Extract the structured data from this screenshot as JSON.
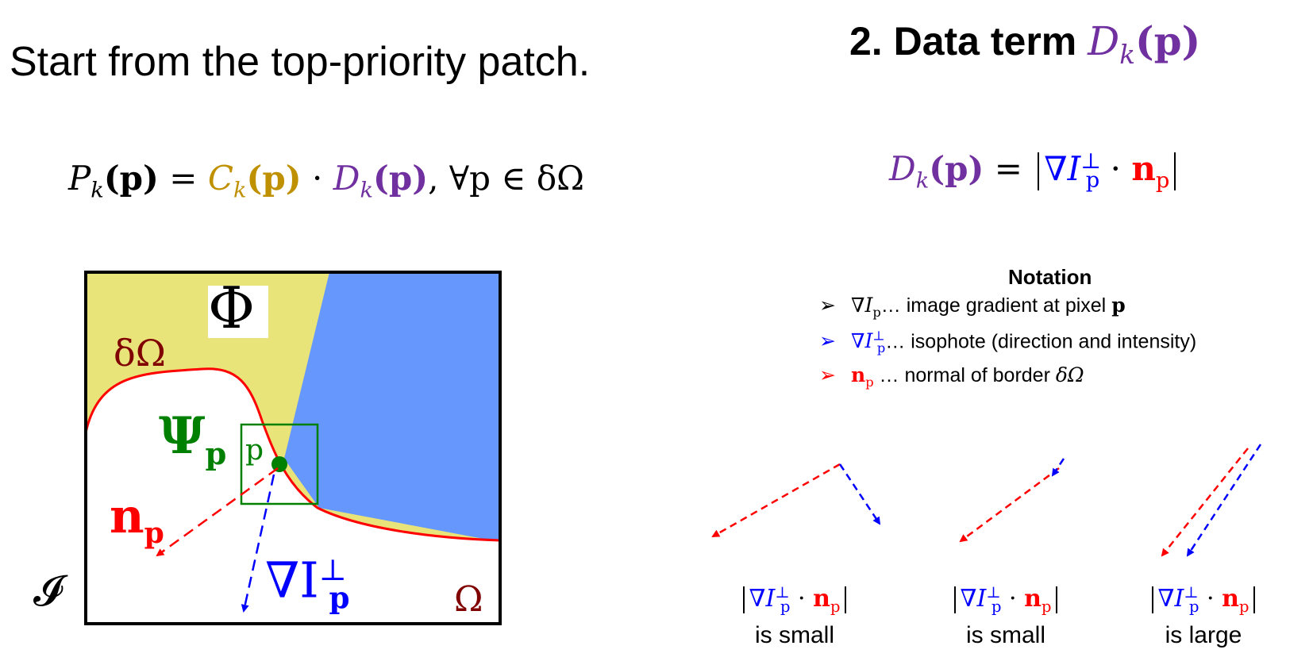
{
  "left_heading": "Start from the top-priority patch.",
  "right_heading": {
    "number": "2.",
    "text": "Data term",
    "symbol": "D",
    "subscript": "k",
    "arg": "(p)"
  },
  "priority_equation": {
    "lhs": "P",
    "lhs_sub": "k",
    "arg": "(p)",
    "equals": "=",
    "c_term": "C",
    "c_sub": "k",
    "dot": "·",
    "d_term": "D",
    "d_sub": "k",
    "tail": ", ∀p ∈ δΩ"
  },
  "data_equation": {
    "lhs": "D",
    "lhs_sub": "k",
    "arg": "(p)",
    "equals": "=",
    "nabla_I": "∇I",
    "I_sub": "p",
    "I_sup": "⊥",
    "dot": "·",
    "n": "n",
    "n_sub": "p"
  },
  "notation": {
    "title": "Notation",
    "items": [
      {
        "arrow": "➢",
        "symbol": "∇I",
        "sub": "p",
        "sup": "",
        "text": "… image gradient at pixel ",
        "tail": "p",
        "color": "#000000"
      },
      {
        "arrow": "➢",
        "symbol": "∇I",
        "sub": "p",
        "sup": "⊥",
        "text": "… isophote (direction and intensity)",
        "tail": "",
        "color": "#0000ff"
      },
      {
        "arrow": "➢",
        "symbol": "n",
        "sub": "p",
        "sup": "",
        "text": " … normal of border ",
        "tail": "δΩ",
        "color": "#ff0000"
      }
    ]
  },
  "figure": {
    "phi": "Φ",
    "delta_omega": "δΩ",
    "psi": "Ψ",
    "psi_sub": "p",
    "p_label": "p",
    "n": "n",
    "n_sub": "p",
    "nabla_I": "∇I",
    "I_sub": "p",
    "I_sup": "⊥",
    "script_I": "𝓘",
    "omega": "Ω",
    "colors": {
      "yellow": "#e9e47a",
      "blue": "#6597fd",
      "red": "#ff0000",
      "green": "#008000",
      "dark_red": "#800000"
    }
  },
  "cases": [
    {
      "label": "is small"
    },
    {
      "label": "is small"
    },
    {
      "label": "is large"
    }
  ],
  "case_equation": {
    "nabla_I": "∇I",
    "I_sub": "p",
    "I_sup": "⊥",
    "dot": "·",
    "n": "n",
    "n_sub": "p"
  }
}
